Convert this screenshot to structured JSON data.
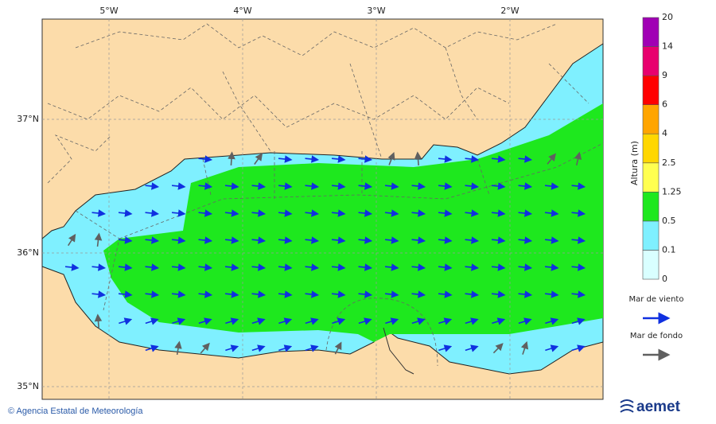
{
  "map": {
    "lon_labels": [
      "5°W",
      "4°W",
      "3°W",
      "2°W"
    ],
    "lat_labels": [
      "37°N",
      "36°N",
      "35°N"
    ],
    "colorbar": {
      "title": "Altura (m)",
      "ticks": [
        0,
        0.1,
        0.5,
        1.25,
        2.5,
        4,
        6,
        9,
        14,
        20
      ],
      "colors": [
        "#d9ffff",
        "#7ff0ff",
        "#1ee81e",
        "#ffff50",
        "#ffd700",
        "#ffa500",
        "#ff0000",
        "#e8006e",
        "#a000b4"
      ]
    },
    "legend": [
      {
        "label": "Mar de viento",
        "color": "#1030e0"
      },
      {
        "label": "Mar de fondo",
        "color": "#606060"
      }
    ]
  },
  "footer": {
    "credit": "© Agencia Estatal de Meteorología",
    "logo": "aemet"
  }
}
